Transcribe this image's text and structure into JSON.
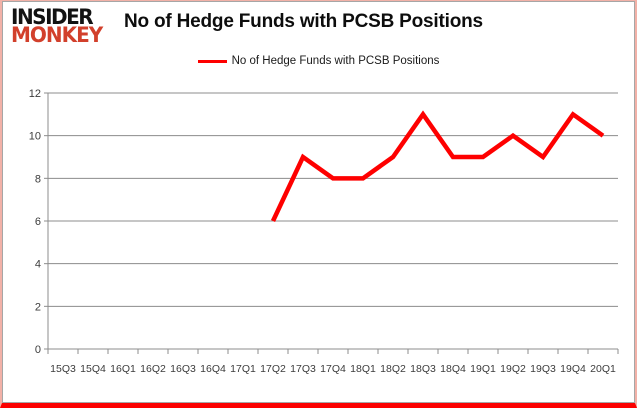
{
  "logo": {
    "line1": "INSIDER",
    "line2": "MONKEY"
  },
  "header": {
    "title": "No of Hedge Funds with PCSB Positions"
  },
  "legend": {
    "label": "No of Hedge Funds with PCSB Positions",
    "line_color": "#fe0000"
  },
  "chart_data": {
    "type": "line",
    "title": "No of Hedge Funds with PCSB Positions",
    "categories": [
      "15Q3",
      "15Q4",
      "16Q1",
      "16Q2",
      "16Q3",
      "16Q4",
      "17Q1",
      "17Q2",
      "17Q3",
      "17Q4",
      "18Q1",
      "18Q2",
      "18Q3",
      "18Q4",
      "19Q1",
      "19Q2",
      "19Q3",
      "19Q4",
      "20Q1"
    ],
    "series": [
      {
        "name": "No of Hedge Funds with PCSB Positions",
        "color": "#fe0000",
        "values": [
          null,
          null,
          null,
          null,
          null,
          null,
          null,
          6,
          9,
          8,
          8,
          9,
          11,
          9,
          9,
          10,
          9,
          11,
          10
        ]
      }
    ],
    "xlabel": "",
    "ylabel": "",
    "ylim": [
      0,
      12
    ],
    "yticks": [
      0,
      2,
      4,
      6,
      8,
      10,
      12
    ],
    "grid": true,
    "legend_position": "top"
  },
  "colors": {
    "grid": "#8c8c8c",
    "axis": "#8c8c8c",
    "tick_text": "#3c3c3c",
    "logo_red": "#d2402c",
    "border_pink": "#f2b1a7",
    "border_red": "#fb0000"
  }
}
